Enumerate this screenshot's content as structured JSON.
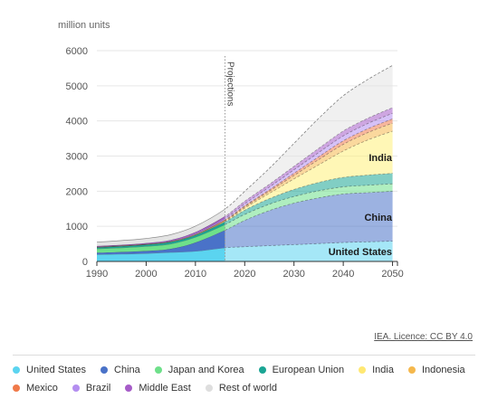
{
  "chart_data": {
    "type": "area",
    "ylabel": "million units",
    "ylim": [
      0,
      6000
    ],
    "yticks": [
      0,
      1000,
      2000,
      3000,
      4000,
      5000,
      6000
    ],
    "xlim": [
      1990,
      2051
    ],
    "xticks": [
      1990,
      2000,
      2010,
      2020,
      2030,
      2040,
      2050
    ],
    "projection_start": 2016,
    "projection_label": "Projections",
    "x": [
      1990,
      1995,
      2000,
      2005,
      2010,
      2016,
      2020,
      2025,
      2030,
      2035,
      2040,
      2045,
      2050
    ],
    "series": [
      {
        "name": "United States",
        "color": "#5bd4f0",
        "values": [
          200,
          210,
          230,
          260,
          290,
          390,
          420,
          450,
          480,
          510,
          540,
          560,
          580
        ]
      },
      {
        "name": "China",
        "color": "#4a72c8",
        "values": [
          50,
          60,
          70,
          100,
          250,
          500,
          750,
          1000,
          1180,
          1300,
          1380,
          1400,
          1420
        ]
      },
      {
        "name": "Japan and Korea",
        "color": "#6ee08a",
        "values": [
          110,
          120,
          130,
          140,
          150,
          160,
          170,
          180,
          190,
          200,
          205,
          210,
          210
        ]
      },
      {
        "name": "European Union",
        "color": "#1aa594",
        "values": [
          40,
          45,
          50,
          55,
          60,
          80,
          120,
          160,
          200,
          240,
          270,
          290,
          300
        ]
      },
      {
        "name": "India",
        "color": "#fff07a",
        "values": [
          5,
          5,
          5,
          8,
          10,
          20,
          60,
          150,
          300,
          500,
          750,
          1000,
          1200
        ]
      },
      {
        "name": "Indonesia",
        "color": "#f5b84d",
        "values": [
          5,
          5,
          5,
          6,
          8,
          20,
          35,
          60,
          100,
          150,
          190,
          210,
          230
        ]
      },
      {
        "name": "Mexico",
        "color": "#f07a4a",
        "values": [
          5,
          5,
          5,
          6,
          8,
          20,
          30,
          40,
          60,
          80,
          100,
          110,
          120
        ]
      },
      {
        "name": "Brazil",
        "color": "#b48ef0",
        "values": [
          5,
          5,
          5,
          8,
          20,
          40,
          60,
          80,
          100,
          120,
          140,
          150,
          160
        ]
      },
      {
        "name": "Middle East",
        "color": "#a65cc8",
        "values": [
          20,
          20,
          25,
          30,
          40,
          60,
          70,
          80,
          100,
          120,
          140,
          150,
          160
        ]
      },
      {
        "name": "Rest of world",
        "color": "#e4e4e4",
        "values": [
          110,
          120,
          130,
          150,
          170,
          200,
          280,
          450,
          650,
          850,
          1000,
          1100,
          1200
        ]
      }
    ],
    "annotations": [
      {
        "text": "India",
        "series": "India"
      },
      {
        "text": "China",
        "series": "China"
      },
      {
        "text": "United States",
        "series": "United States"
      }
    ]
  },
  "licence_text": "IEA. Licence: CC BY 4.0",
  "legend": [
    {
      "label": "United States",
      "color": "#5bd4f0"
    },
    {
      "label": "China",
      "color": "#4a72c8"
    },
    {
      "label": "Japan and Korea",
      "color": "#6ee08a"
    },
    {
      "label": "European Union",
      "color": "#1aa594"
    },
    {
      "label": "India",
      "color": "#ffe873"
    },
    {
      "label": "Indonesia",
      "color": "#f5b84d"
    },
    {
      "label": "Mexico",
      "color": "#f07a4a"
    },
    {
      "label": "Brazil",
      "color": "#b48ef0"
    },
    {
      "label": "Middle East",
      "color": "#a65cc8"
    },
    {
      "label": "Rest of world",
      "color": "#dedede"
    }
  ]
}
